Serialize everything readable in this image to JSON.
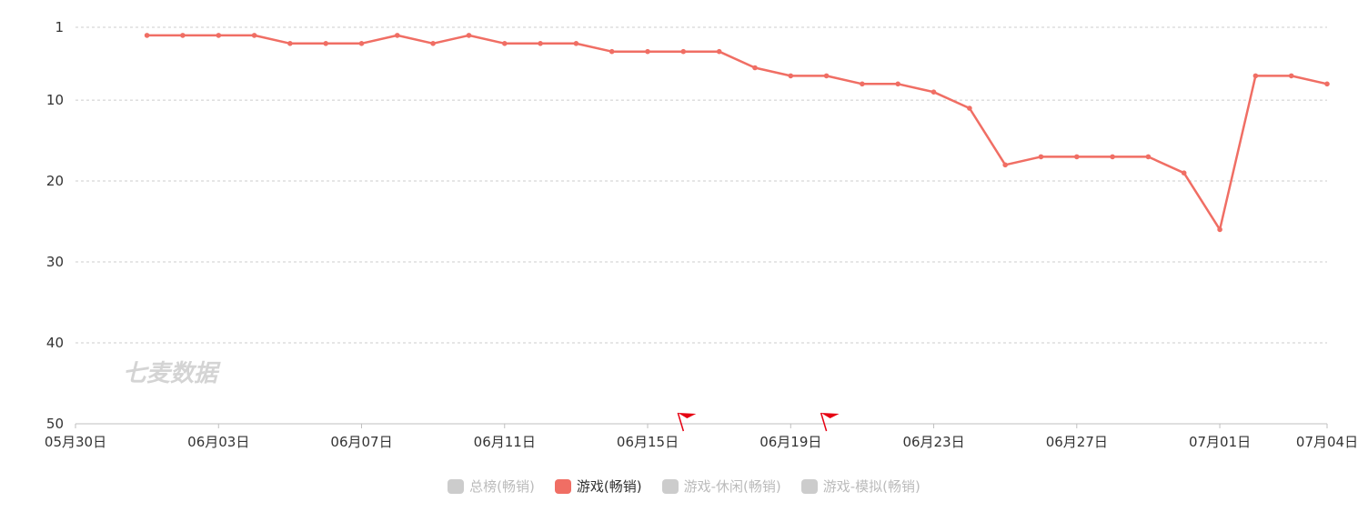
{
  "watermark": "七麦数据",
  "colors": {
    "line": "#f06e64",
    "grid": "#cccccc",
    "axis": "#bfbfbf",
    "inactive": "#cccccc",
    "flag": "#e60012",
    "text": "#333333"
  },
  "legend": [
    {
      "label": "总榜(畅销)",
      "active": false
    },
    {
      "label": "游戏(畅销)",
      "active": true
    },
    {
      "label": "游戏-休闲(畅销)",
      "active": false
    },
    {
      "label": "游戏-模拟(畅销)",
      "active": false
    }
  ],
  "chart_data": {
    "type": "line",
    "y_inverted": true,
    "ylim": [
      1,
      50
    ],
    "yticks": [
      1,
      10,
      20,
      30,
      40,
      50
    ],
    "xlim": [
      "2022-05-30",
      "2022-07-04"
    ],
    "xticks": [
      "05月30日",
      "06月03日",
      "06月07日",
      "06月11日",
      "06月15日",
      "06月19日",
      "06月23日",
      "06月27日",
      "07月01日",
      "07月04日"
    ],
    "grid": true,
    "legend_position": "bottom",
    "flags": [
      "06月16日",
      "06月20日"
    ],
    "series": [
      {
        "name": "游戏(畅销)",
        "x": [
          "06月01日",
          "06月02日",
          "06月03日",
          "06月04日",
          "06月05日",
          "06月06日",
          "06月07日",
          "06月08日",
          "06月09日",
          "06月10日",
          "06月11日",
          "06月12日",
          "06月13日",
          "06月14日",
          "06月15日",
          "06月16日",
          "06月17日",
          "06月18日",
          "06月19日",
          "06月20日",
          "06月21日",
          "06月22日",
          "06月23日",
          "06月24日",
          "06月25日",
          "06月26日",
          "06月27日",
          "06月28日",
          "06月29日",
          "06月30日",
          "07月01日",
          "07月02日",
          "07月03日",
          "07月04日"
        ],
        "values": [
          2,
          2,
          2,
          2,
          3,
          3,
          3,
          2,
          3,
          2,
          3,
          3,
          3,
          4,
          4,
          4,
          4,
          6,
          7,
          7,
          8,
          8,
          9,
          11,
          18,
          17,
          17,
          17,
          17,
          19,
          26,
          7,
          7,
          8
        ]
      }
    ]
  }
}
